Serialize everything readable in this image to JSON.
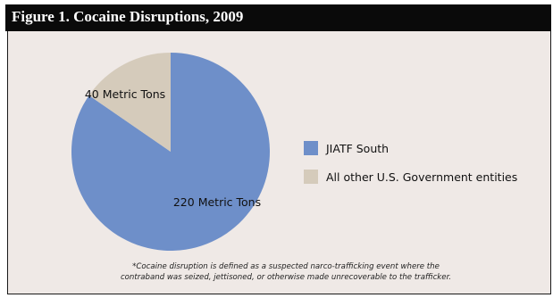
{
  "figure": {
    "title": "Figure 1. Cocaine Disruptions, 2009",
    "footnote_line1": "*Cocaine disruption is defined as a suspected narco-trafficking event where the",
    "footnote_line2": "contraband was seized, jettisoned, or otherwise made unrecoverable to the trafficker."
  },
  "colors": {
    "title_bar": "#0a0a0a",
    "panel_background": "#efe9e6",
    "jiatf_south": "#6e8fc9",
    "other_entities": "#d5cbbb"
  },
  "chart_data": {
    "type": "pie",
    "title": "Figure 1. Cocaine Disruptions, 2009",
    "units": "Metric Tons",
    "slices": [
      {
        "name": "JIATF South",
        "value": 220,
        "label": "220 Metric Tons",
        "color": "#6e8fc9"
      },
      {
        "name": "All other U.S. Government entities",
        "value": 40,
        "label": "40 Metric Tons",
        "color": "#d5cbbb"
      }
    ],
    "legend_position": "right",
    "legend": [
      {
        "label": "JIATF South",
        "color": "#6e8fc9"
      },
      {
        "label": "All other U.S. Government entities",
        "color": "#d5cbbb"
      }
    ]
  }
}
